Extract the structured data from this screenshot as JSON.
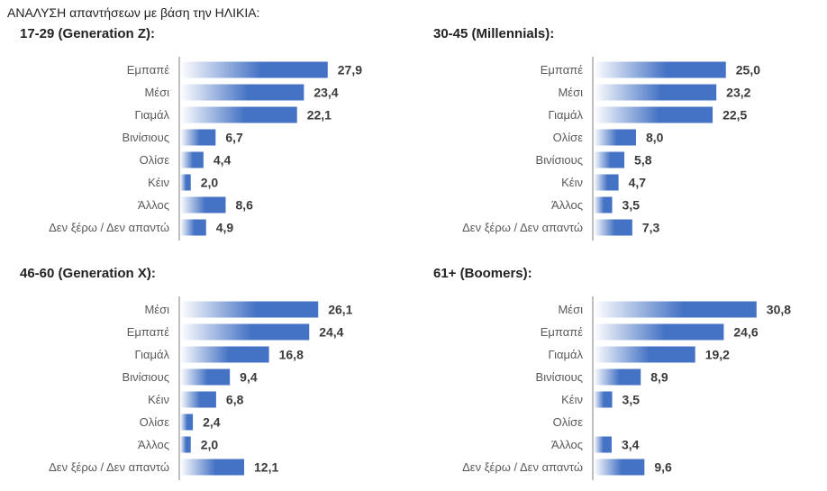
{
  "header": "ΑΝΑΛΥΣΗ απαντήσεων με βάση την ΗΛΙΚΙΑ:",
  "colors": {
    "bar_dark": "#4472c4",
    "bar_light": "#ffffff"
  },
  "chart_data": [
    {
      "type": "bar",
      "orientation": "horizontal",
      "title": "17-29 (Generation Z):",
      "categories": [
        "Εμπαπέ",
        "Μέσι",
        "Γιαμάλ",
        "Βινίσιους",
        "Ολίσε",
        "Κέιν",
        "Άλλος",
        "Δεν ξέρω / Δεν απαντώ"
      ],
      "values": [
        "27,9",
        "23,4",
        "22,1",
        "6,7",
        "4,4",
        "2,0",
        "8,6",
        "4,9"
      ],
      "xlim": [
        0,
        35
      ],
      "grid": false,
      "legend": "none"
    },
    {
      "type": "bar",
      "orientation": "horizontal",
      "title": "30-45 (Millennials):",
      "categories": [
        "Εμπαπέ",
        "Μέσι",
        "Γιαμάλ",
        "Ολίσε",
        "Βινίσιους",
        "Κέιν",
        "Άλλος",
        "Δεν ξέρω / Δεν απαντώ"
      ],
      "values": [
        "25,0",
        "23,2",
        "22,5",
        "8,0",
        "5,8",
        "4,7",
        "3,5",
        "7,3"
      ],
      "xlim": [
        0,
        35
      ],
      "grid": false,
      "legend": "none"
    },
    {
      "type": "bar",
      "orientation": "horizontal",
      "title": "46-60 (Generation X):",
      "categories": [
        "Μέσι",
        "Εμπαπέ",
        "Γιαμάλ",
        "Βινίσιους",
        "Κέιν",
        "Ολίσε",
        "Άλλος",
        "Δεν ξέρω / Δεν απαντώ"
      ],
      "values": [
        "26,1",
        "24,4",
        "16,8",
        "9,4",
        "6,8",
        "2,4",
        "2,0",
        "12,1"
      ],
      "xlim": [
        0,
        35
      ],
      "grid": false,
      "legend": "none"
    },
    {
      "type": "bar",
      "orientation": "horizontal",
      "title": "61+ (Boomers):",
      "categories": [
        "Μέσι",
        "Εμπαπέ",
        "Γιαμάλ",
        "Βινίσιους",
        "Κέιν",
        "Ολίσε",
        "Άλλος",
        "Δεν ξέρω / Δεν απαντώ"
      ],
      "values": [
        "30,8",
        "24,6",
        "19,2",
        "8,9",
        "3,5",
        "",
        "3,4",
        "9,6"
      ],
      "xlim": [
        0,
        35
      ],
      "grid": false,
      "legend": "none"
    }
  ]
}
